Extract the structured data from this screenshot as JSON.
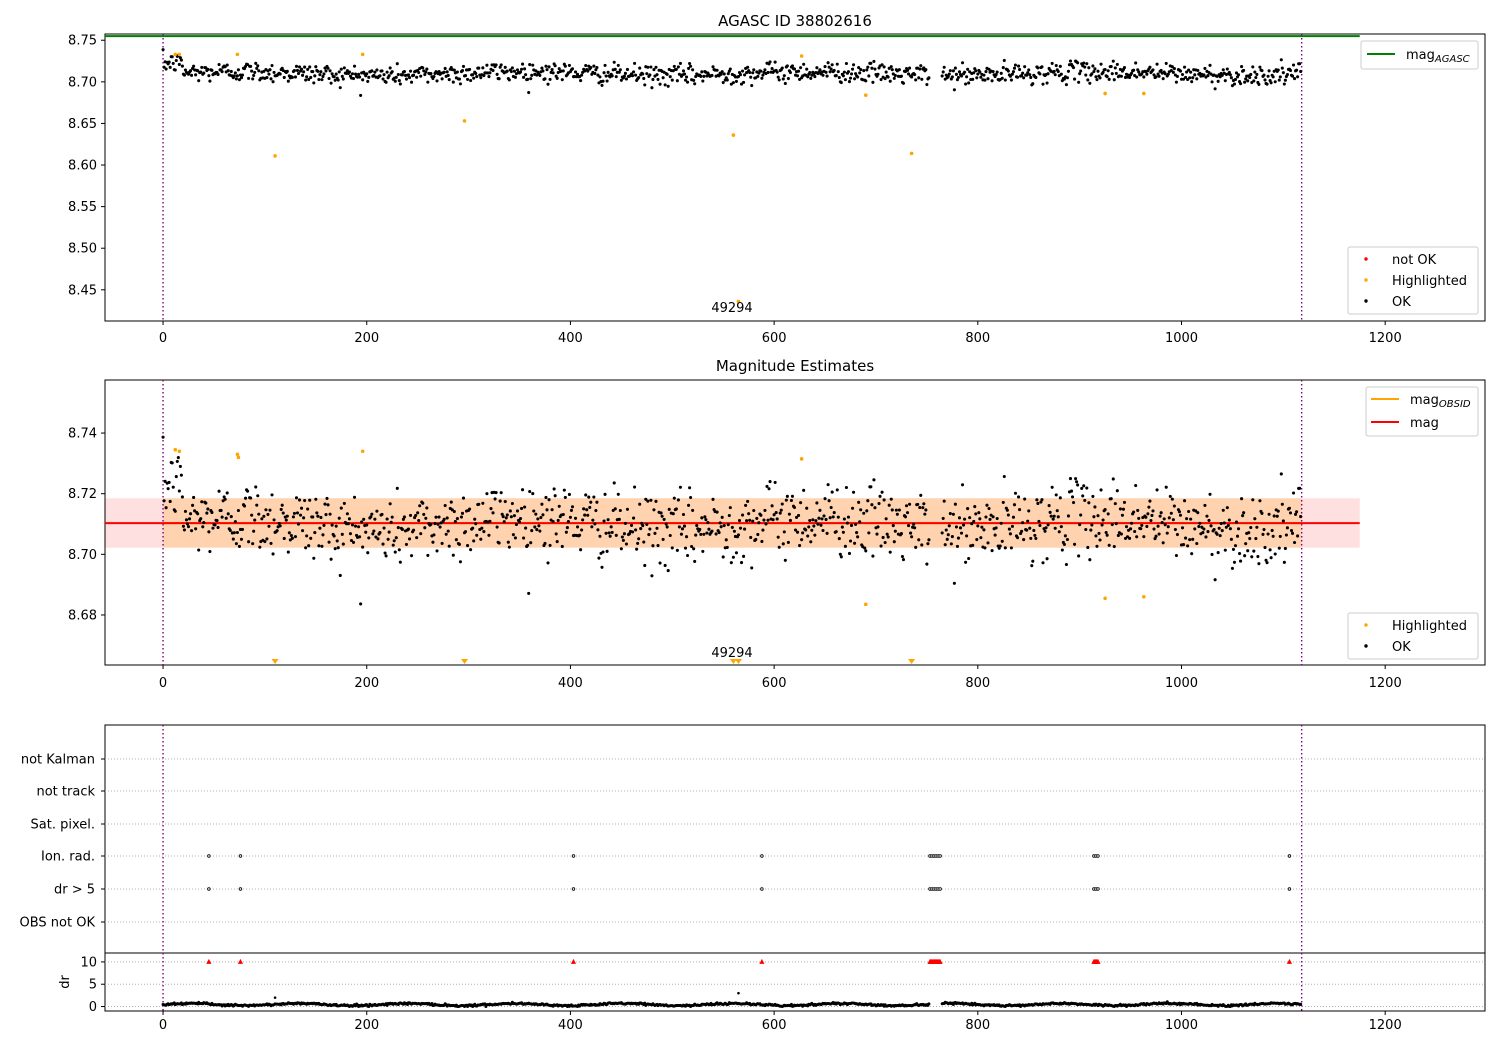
{
  "chart_data": [
    {
      "type": "scatter",
      "title": "AGASC ID 38802616",
      "xlim": [
        -57,
        1298
      ],
      "ylim": [
        8.4125,
        8.7575
      ],
      "xticks": [
        0,
        200,
        400,
        600,
        800,
        1000,
        1200
      ],
      "yticks": [
        8.45,
        8.5,
        8.55,
        8.6,
        8.65,
        8.7,
        8.75
      ],
      "ytick_labels": [
        "8.45",
        "8.50",
        "8.55",
        "8.60",
        "8.65",
        "8.70",
        "8.75"
      ],
      "mag_agasc": 8.755,
      "mag_agasc_range": [
        -57,
        1175
      ],
      "obsid_boundaries": [
        0,
        1118
      ],
      "obsid_label": {
        "text": "49294",
        "x": 559
      },
      "ok_series": {
        "n": 1118,
        "x_max": 1118,
        "mean": 8.71,
        "spread": 0.006,
        "color": "#000000"
      },
      "highlighted": {
        "color": "#ffa500",
        "x": [
          12,
          16,
          73,
          110,
          196,
          296,
          560,
          565,
          627,
          690,
          735,
          925,
          963
        ],
        "y": [
          8.733,
          8.733,
          8.733,
          8.611,
          8.733,
          8.653,
          8.636,
          8.436,
          8.731,
          8.684,
          8.614,
          8.686,
          8.686
        ]
      },
      "legend_top": [
        {
          "label": "mag",
          "sub": "AGASC",
          "color": "#008000"
        }
      ],
      "legend_bottom": [
        {
          "label": "not OK",
          "color": "#ff0000"
        },
        {
          "label": "Highlighted",
          "color": "#ffa500"
        },
        {
          "label": "OK",
          "color": "#000000"
        }
      ]
    },
    {
      "type": "scatter",
      "title": "Magnitude Estimates",
      "xlim": [
        -57,
        1298
      ],
      "ylim": [
        8.6635,
        8.7575
      ],
      "xticks": [
        0,
        200,
        400,
        600,
        800,
        1000,
        1200
      ],
      "yticks": [
        8.68,
        8.7,
        8.72,
        8.74
      ],
      "ytick_labels": [
        "8.68",
        "8.70",
        "8.72",
        "8.74"
      ],
      "mag": 8.7103,
      "mag_band": [
        8.7022,
        8.7185
      ],
      "mag_range": [
        -57,
        1175
      ],
      "obsid_band_range": [
        0,
        1118
      ],
      "obsid_boundaries": [
        0,
        1118
      ],
      "obsid_label": {
        "text": "49294",
        "x": 559
      },
      "ok_series": {
        "n": 1118,
        "x_max": 1118,
        "mean": 8.71,
        "spread": 0.006,
        "color": "#000000"
      },
      "highlighted": {
        "color": "#ffa500",
        "x": [
          12,
          16,
          73,
          74,
          196,
          627,
          690,
          925,
          963
        ],
        "y": [
          8.7345,
          8.734,
          8.733,
          8.732,
          8.734,
          8.7315,
          8.6835,
          8.6855,
          8.686
        ]
      },
      "off_scale_markers": {
        "color": "#ffa500",
        "x": [
          110,
          296,
          560,
          565,
          735
        ]
      },
      "legend_top": [
        {
          "label": "mag",
          "sub": "OBSID",
          "color": "#ffa500"
        },
        {
          "label": "mag",
          "sub": "",
          "color": "#ff0000"
        }
      ],
      "legend_bottom": [
        {
          "label": "Highlighted",
          "color": "#ffa500"
        },
        {
          "label": "OK",
          "color": "#000000"
        }
      ]
    },
    {
      "type": "scatter",
      "title": "",
      "xlim": [
        -57,
        1298
      ],
      "xticks": [
        0,
        200,
        400,
        600,
        800,
        1000,
        1200
      ],
      "flag_rows": [
        "OBS not OK",
        "dr > 5",
        "Ion. rad.",
        "Sat. pixel.",
        "not track",
        "not Kalman"
      ],
      "flag_events": {
        "dr > 5": [
          45,
          76,
          403,
          588,
          753,
          755,
          757,
          759,
          761,
          763,
          914,
          916,
          918,
          1106
        ],
        "Ion. rad.": [
          45,
          76,
          403,
          588,
          753,
          755,
          757,
          759,
          761,
          763,
          914,
          916,
          918,
          1106
        ]
      },
      "dr": {
        "ylabel": "dr",
        "ylim": [
          -1,
          12
        ],
        "yticks": [
          0,
          5,
          10
        ],
        "ytick_labels": [
          "0",
          "5",
          "10"
        ],
        "clip_value": 10,
        "clipped_color": "#ff0000",
        "clipped_x": [
          45,
          76,
          403,
          588,
          753,
          754,
          755,
          756,
          757,
          758,
          759,
          760,
          761,
          762,
          763,
          914,
          915,
          916,
          917,
          918,
          1106
        ],
        "outliers_x": [
          110,
          565
        ],
        "outliers_y": [
          2.0,
          3.0
        ]
      },
      "obsid_boundaries": [
        0,
        1118
      ]
    }
  ]
}
